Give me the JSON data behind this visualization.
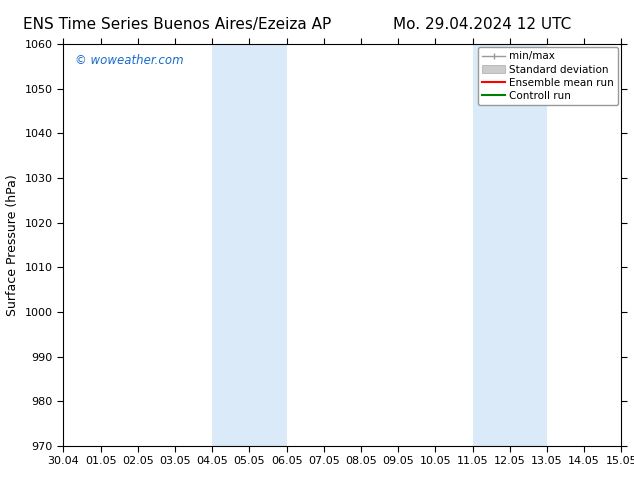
{
  "title_left": "ENS Time Series Buenos Aires/Ezeiza AP",
  "title_right": "Mo. 29.04.2024 12 UTC",
  "ylabel": "Surface Pressure (hPa)",
  "watermark": "© woweather.com",
  "watermark_color": "#1a6acc",
  "ylim": [
    970,
    1060
  ],
  "yticks": [
    970,
    980,
    990,
    1000,
    1010,
    1020,
    1030,
    1040,
    1050,
    1060
  ],
  "xtick_labels": [
    "30.04",
    "01.05",
    "02.05",
    "03.05",
    "04.05",
    "05.05",
    "06.05",
    "07.05",
    "08.05",
    "09.05",
    "10.05",
    "11.05",
    "12.05",
    "13.05",
    "14.05",
    "15.05"
  ],
  "background_color": "#ffffff",
  "plot_bg_color": "#ffffff",
  "shaded_bands": [
    {
      "xstart": 4,
      "xend": 6,
      "color": "#daeaf8"
    },
    {
      "xstart": 11,
      "xend": 13,
      "color": "#daeaf8"
    }
  ],
  "legend_entries": [
    {
      "label": "min/max",
      "color": "#999999",
      "lw": 1.0,
      "style": "minmax"
    },
    {
      "label": "Standard deviation",
      "color": "#cccccc",
      "lw": 6,
      "style": "band"
    },
    {
      "label": "Ensemble mean run",
      "color": "#ff0000",
      "lw": 1.5,
      "style": "line"
    },
    {
      "label": "Controll run",
      "color": "#008000",
      "lw": 1.5,
      "style": "line"
    }
  ],
  "title_fontsize": 11,
  "axis_label_fontsize": 9,
  "tick_fontsize": 8,
  "legend_fontsize": 7.5
}
